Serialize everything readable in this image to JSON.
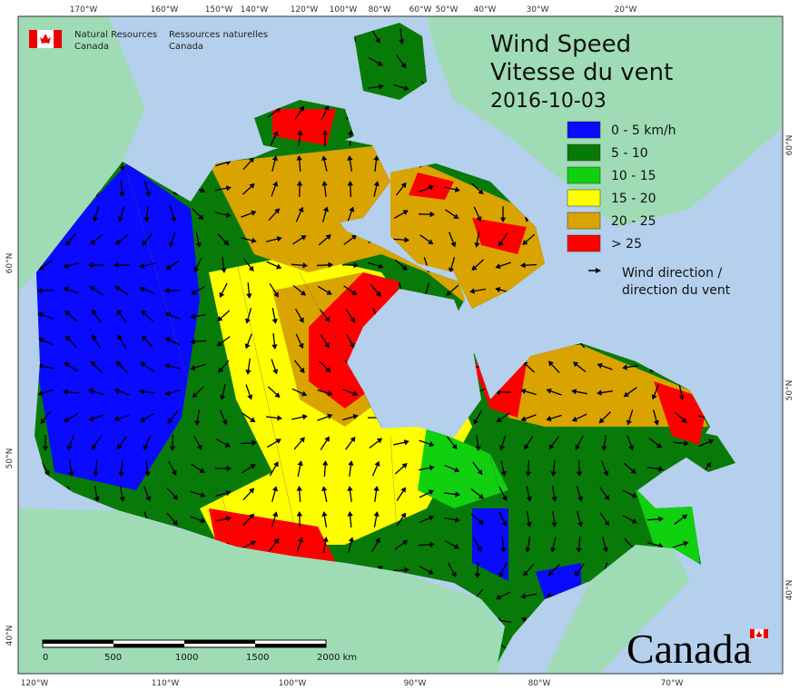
{
  "agency": {
    "en_line1": "Natural Resources",
    "en_line2": "Canada",
    "fr_line1": "Ressources naturelles",
    "fr_line2": "Canada"
  },
  "title": {
    "en": "Wind Speed",
    "fr": "Vitesse du vent",
    "date": "2016-10-03"
  },
  "legend": {
    "items": [
      {
        "label": "0 - 5 km/h",
        "color": "#0a0aff"
      },
      {
        "label": "5 - 10",
        "color": "#087a08"
      },
      {
        "label": "10 - 15",
        "color": "#10d010"
      },
      {
        "label": "15 - 20",
        "color": "#ffff00"
      },
      {
        "label": "20 - 25",
        "color": "#d9a300"
      },
      {
        "label": "> 25",
        "color": "#ff0000"
      }
    ],
    "direction_line1": "Wind direction /",
    "direction_line2": "direction du vent"
  },
  "graticule": {
    "top": [
      "170°W",
      "160°W",
      "150°W",
      "140°W",
      "120°W",
      "100°W",
      "80°W",
      "60°W",
      "50°W",
      "40°W",
      "30°W",
      "20°W"
    ],
    "bottom": [
      "120°W",
      "110°W",
      "100°W",
      "90°W",
      "80°W",
      "70°W"
    ],
    "left": [
      "60°N",
      "50°N",
      "40°N"
    ],
    "right": [
      "60°N",
      "50°N",
      "40°N"
    ]
  },
  "scale_bar": {
    "labels": [
      "0",
      "500",
      "1000",
      "1500",
      "2000 km"
    ]
  },
  "wordmark": "Canada"
}
